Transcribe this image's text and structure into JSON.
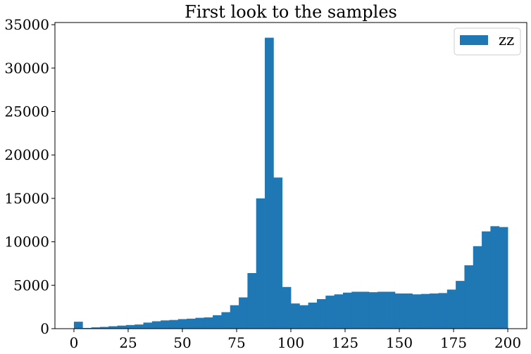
{
  "chart_data": {
    "type": "bar",
    "title": "First look to the samples",
    "xlabel": "",
    "ylabel": "",
    "xlim": [
      -8.75,
      208.75
    ],
    "ylim": [
      0,
      35250
    ],
    "xticks": [
      0,
      25,
      50,
      75,
      100,
      125,
      150,
      175,
      200
    ],
    "yticks": [
      0,
      5000,
      10000,
      15000,
      20000,
      25000,
      30000,
      35000
    ],
    "grid": false,
    "legend_position": "top-right",
    "bin_width": 4,
    "series": [
      {
        "name": "zz",
        "color": "#1f77b4",
        "bin_edges": [
          0,
          4,
          8,
          12,
          16,
          20,
          24,
          28,
          32,
          36,
          40,
          44,
          48,
          52,
          56,
          60,
          64,
          68,
          72,
          76,
          80,
          84,
          88,
          92,
          96,
          100,
          104,
          108,
          112,
          116,
          120,
          124,
          128,
          132,
          136,
          140,
          144,
          148,
          152,
          156,
          160,
          164,
          168,
          172,
          176,
          180,
          184,
          188,
          192,
          196,
          200
        ],
        "values": [
          800,
          80,
          150,
          200,
          280,
          350,
          420,
          480,
          700,
          850,
          950,
          1000,
          1100,
          1150,
          1250,
          1300,
          1550,
          1900,
          2700,
          3600,
          6400,
          15000,
          33500,
          17400,
          4800,
          2900,
          2700,
          3000,
          3400,
          3800,
          3950,
          4150,
          4250,
          4250,
          4200,
          4250,
          4250,
          4050,
          4050,
          3950,
          4000,
          4050,
          4100,
          4500,
          5500,
          7300,
          9500,
          11200,
          11800,
          11700
        ]
      }
    ]
  }
}
